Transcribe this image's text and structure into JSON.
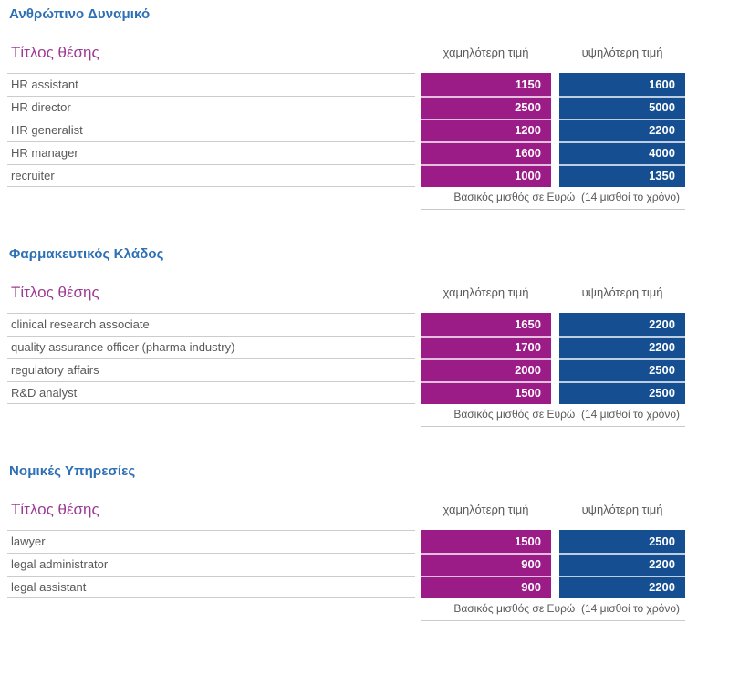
{
  "page": {
    "col_job_title": "Τίτλος θέσης",
    "col_low": "χαμηλότερη τιμή",
    "col_high": "υψηλότερη τιμή",
    "footer_note": "Βασικός μισθός σε Ευρώ  (14 μισθοί το χρόνο)"
  },
  "colors": {
    "accent_blue": "#2d70b5",
    "accent_purple": "#9c3a93",
    "cell_magenta": "#9b1b87",
    "cell_blue": "#154f92"
  },
  "chart_data": {
    "type": "table",
    "unit_note": "Βασικός μισθός σε Ευρώ (14 μισθοί το χρόνο)",
    "columns": [
      "Τίτλος θέσης",
      "χαμηλότερη τιμή",
      "υψηλότερη τιμή"
    ],
    "tables": [
      {
        "title": "Ανθρώπινο Δυναμικό",
        "rows": [
          [
            "HR assistant",
            1150,
            1600
          ],
          [
            "HR director",
            2500,
            5000
          ],
          [
            "HR generalist",
            1200,
            2200
          ],
          [
            "HR manager",
            1600,
            4000
          ],
          [
            "recruiter",
            1000,
            1350
          ]
        ]
      },
      {
        "title": "Φαρμακευτικός Κλάδος",
        "rows": [
          [
            "clinical research associate",
            1650,
            2200
          ],
          [
            "quality assurance officer (pharma industry)",
            1700,
            2200
          ],
          [
            "regulatory affairs",
            2000,
            2500
          ],
          [
            "R&D analyst",
            1500,
            2500
          ]
        ]
      },
      {
        "title": "Νομικές Υπηρεσίες",
        "rows": [
          [
            "lawyer",
            1500,
            2500
          ],
          [
            "legal administrator",
            900,
            2200
          ],
          [
            "legal assistant",
            900,
            2200
          ]
        ]
      }
    ]
  },
  "sections": [
    {
      "title": "Ανθρώπινο Δυναμικό",
      "rows": [
        {
          "job": "HR assistant",
          "low": "1150",
          "high": "1600"
        },
        {
          "job": "HR director",
          "low": "2500",
          "high": "5000"
        },
        {
          "job": "HR generalist",
          "low": "1200",
          "high": "2200"
        },
        {
          "job": "HR manager",
          "low": "1600",
          "high": "4000"
        },
        {
          "job": "recruiter",
          "low": "1000",
          "high": "1350"
        }
      ]
    },
    {
      "title": "Φαρμακευτικός Κλάδος",
      "rows": [
        {
          "job": "clinical research associate",
          "low": "1650",
          "high": "2200"
        },
        {
          "job": "quality assurance officer (pharma industry)",
          "low": "1700",
          "high": "2200"
        },
        {
          "job": "regulatory affairs",
          "low": "2000",
          "high": "2500"
        },
        {
          "job": "R&D analyst",
          "low": "1500",
          "high": "2500"
        }
      ]
    },
    {
      "title": "Νομικές Υπηρεσίες",
      "rows": [
        {
          "job": "lawyer",
          "low": "1500",
          "high": "2500"
        },
        {
          "job": "legal administrator",
          "low": "900",
          "high": "2200"
        },
        {
          "job": "legal assistant",
          "low": "900",
          "high": "2200"
        }
      ]
    }
  ]
}
